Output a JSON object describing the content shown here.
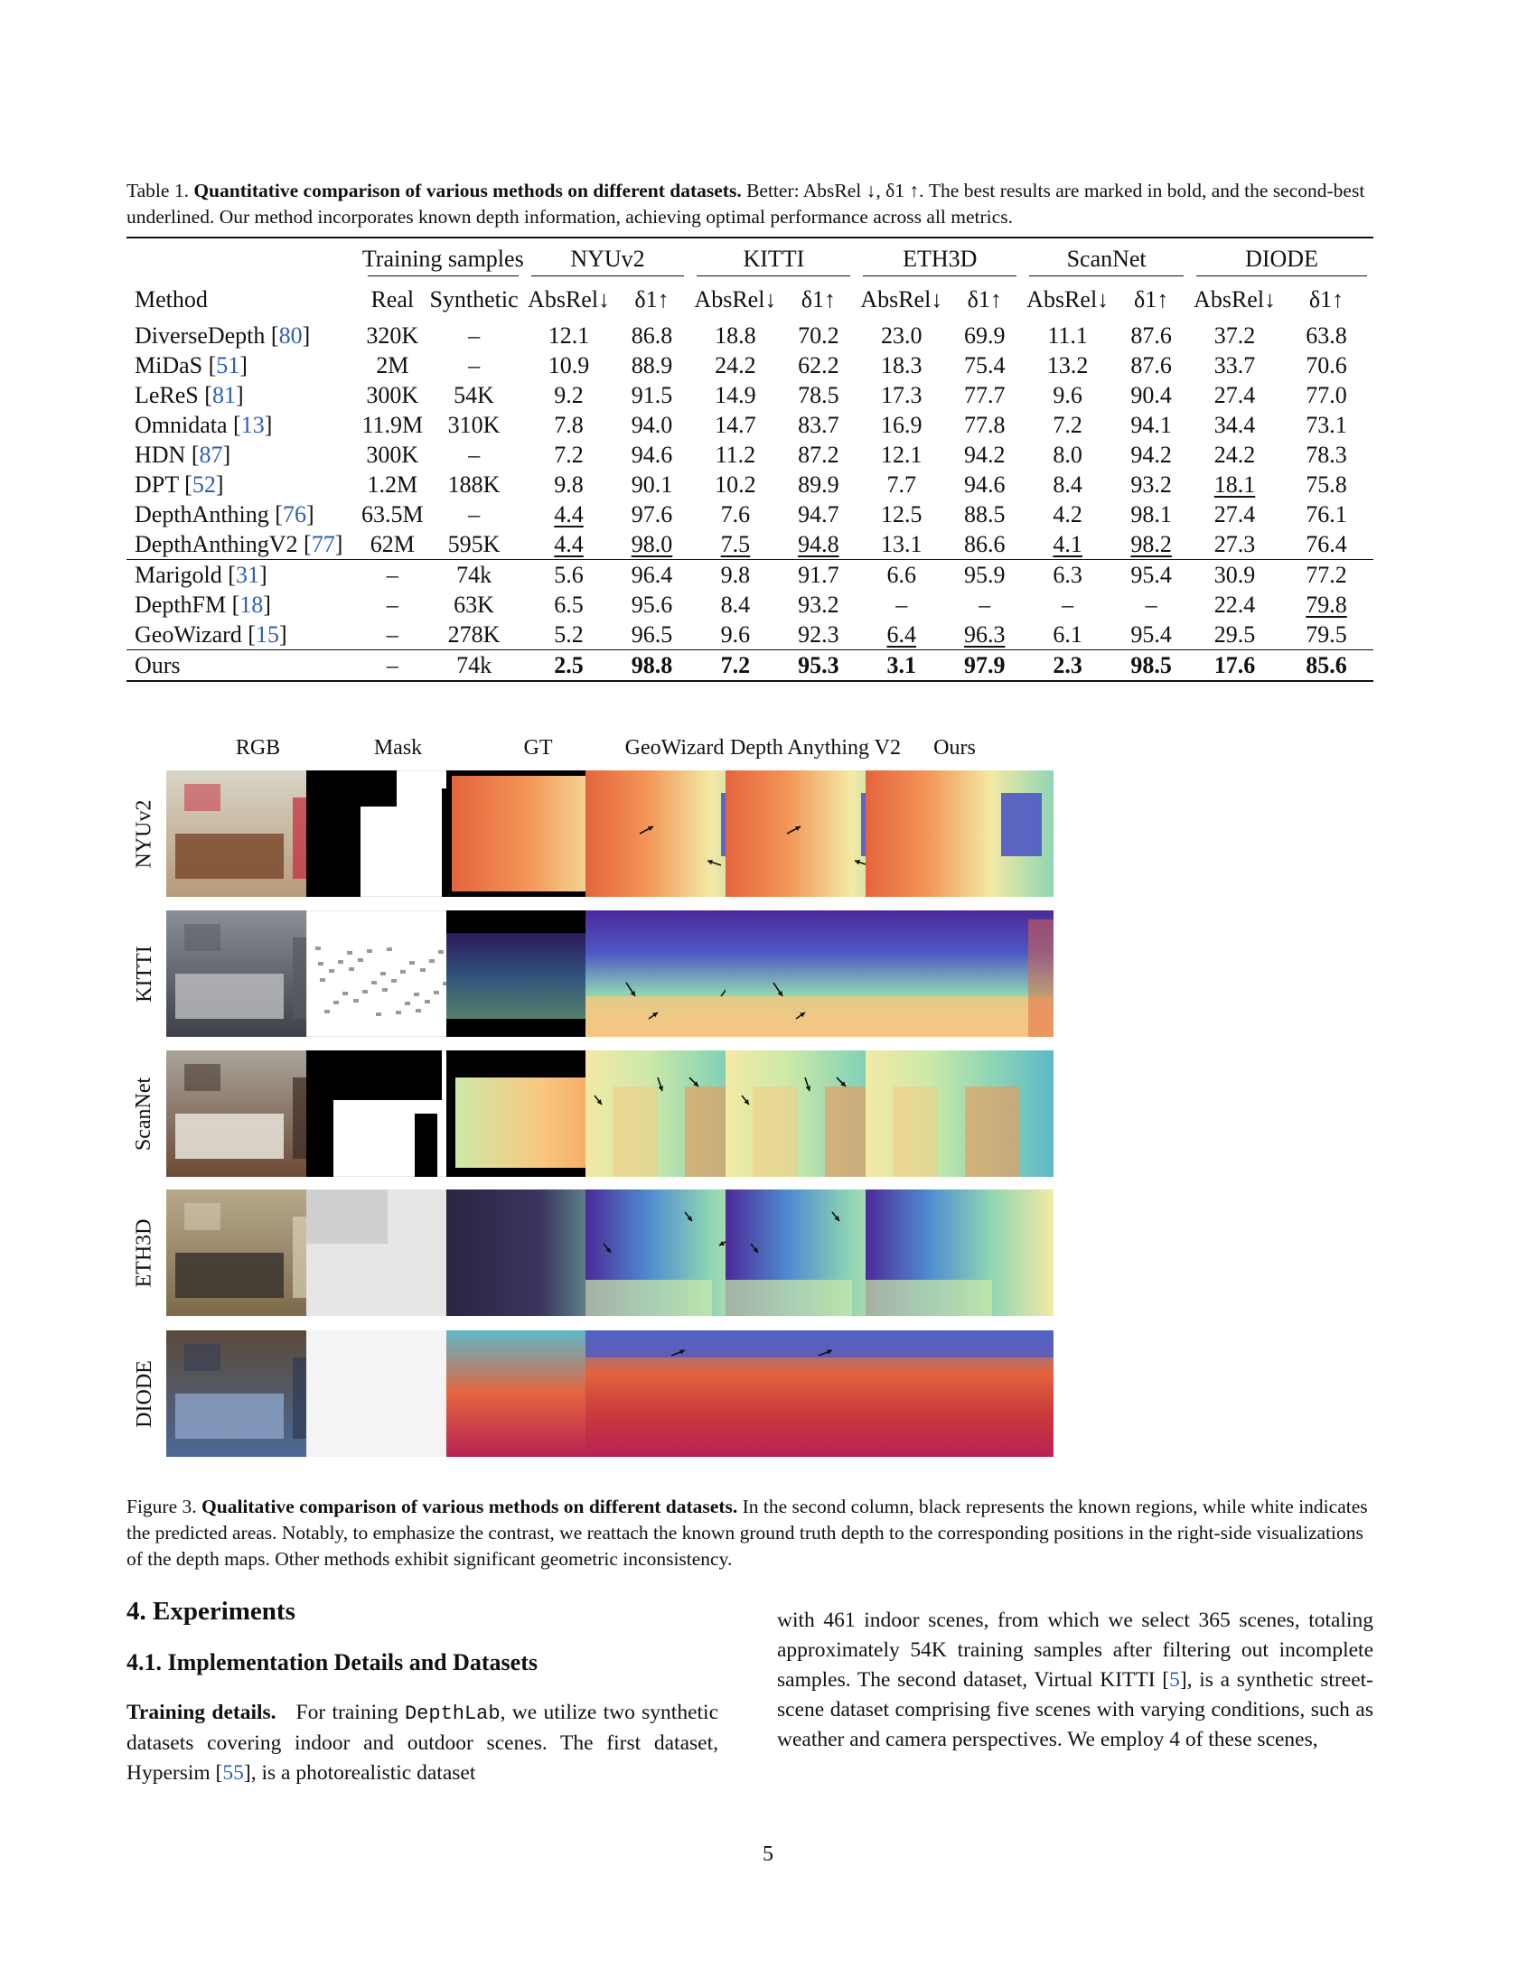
{
  "table_caption": {
    "label": "Table 1.",
    "title": "Quantitative comparison of various methods on different datasets.",
    "text": "Better: AbsRel ↓, δ1 ↑. The best results are marked in bold, and the second-best underlined. Our method incorporates known depth information, achieving optimal performance across all metrics."
  },
  "table": {
    "group_headers": [
      "Training samples",
      "NYUv2",
      "KITTI",
      "ETH3D",
      "ScanNet",
      "DIODE"
    ],
    "headers": [
      "Method",
      "Real",
      "Synthetic",
      "AbsRel↓",
      "δ1↑",
      "AbsRel↓",
      "δ1↑",
      "AbsRel↓",
      "δ1↑",
      "AbsRel↓",
      "δ1↑",
      "AbsRel↓",
      "δ1↑"
    ],
    "rows": [
      {
        "method": "DiverseDepth",
        "ref": "80",
        "cells": [
          "320K",
          "–",
          "12.1",
          "86.8",
          "18.8",
          "70.2",
          "23.0",
          "69.9",
          "11.1",
          "87.6",
          "37.2",
          "63.8"
        ]
      },
      {
        "method": "MiDaS",
        "ref": "51",
        "cells": [
          "2M",
          "–",
          "10.9",
          "88.9",
          "24.2",
          "62.2",
          "18.3",
          "75.4",
          "13.2",
          "87.6",
          "33.7",
          "70.6"
        ]
      },
      {
        "method": "LeReS",
        "ref": "81",
        "cells": [
          "300K",
          "54K",
          "9.2",
          "91.5",
          "14.9",
          "78.5",
          "17.3",
          "77.7",
          "9.6",
          "90.4",
          "27.4",
          "77.0"
        ]
      },
      {
        "method": "Omnidata",
        "ref": "13",
        "cells": [
          "11.9M",
          "310K",
          "7.8",
          "94.0",
          "14.7",
          "83.7",
          "16.9",
          "77.8",
          "7.2",
          "94.1",
          "34.4",
          "73.1"
        ]
      },
      {
        "method": "HDN",
        "ref": "87",
        "cells": [
          "300K",
          "–",
          "7.2",
          "94.6",
          "11.2",
          "87.2",
          "12.1",
          "94.2",
          "8.0",
          "94.2",
          "24.2",
          "78.3"
        ]
      },
      {
        "method": "DPT",
        "ref": "52",
        "cells": [
          "1.2M",
          "188K",
          "9.8",
          "90.1",
          "10.2",
          "89.9",
          "7.7",
          "94.6",
          "8.4",
          "93.2",
          "18.1",
          "75.8"
        ]
      },
      {
        "method": "DepthAnthing",
        "ref": "76",
        "cells": [
          "63.5M",
          "–",
          "4.4",
          "97.6",
          "7.6",
          "94.7",
          "12.5",
          "88.5",
          "4.2",
          "98.1",
          "27.4",
          "76.1"
        ]
      },
      {
        "method": "DepthAnthingV2",
        "ref": "77",
        "cells": [
          "62M",
          "595K",
          "4.4",
          "98.0",
          "7.5",
          "94.8",
          "13.1",
          "86.6",
          "4.1",
          "98.2",
          "27.3",
          "76.4"
        ]
      },
      {
        "method": "Marigold",
        "ref": "31",
        "cells": [
          "–",
          "74k",
          "5.6",
          "96.4",
          "9.8",
          "91.7",
          "6.6",
          "95.9",
          "6.3",
          "95.4",
          "30.9",
          "77.2"
        ]
      },
      {
        "method": "DepthFM",
        "ref": "18",
        "cells": [
          "–",
          "63K",
          "6.5",
          "95.6",
          "8.4",
          "93.2",
          "–",
          "–",
          "–",
          "–",
          "22.4",
          "79.8"
        ]
      },
      {
        "method": "GeoWizard",
        "ref": "15",
        "cells": [
          "–",
          "278K",
          "5.2",
          "96.5",
          "9.6",
          "92.3",
          "6.4",
          "96.3",
          "6.1",
          "95.4",
          "29.5",
          "79.5"
        ]
      },
      {
        "method": "Ours",
        "ref": "",
        "cells": [
          "–",
          "74k",
          "2.5",
          "98.8",
          "7.2",
          "95.3",
          "3.1",
          "97.9",
          "2.3",
          "98.5",
          "17.6",
          "85.6"
        ]
      }
    ]
  },
  "figure": {
    "columns": [
      "RGB",
      "Mask",
      "GT",
      "GeoWizard",
      "Depth Anything V2",
      "Ours"
    ],
    "rows": [
      "NYUv2",
      "KITTI",
      "ScanNet",
      "ETH3D",
      "DIODE"
    ]
  },
  "figure_caption": {
    "label": "Figure 3.",
    "title": "Qualitative comparison of various methods on different datasets.",
    "text": "In the second column, black represents the known regions, while white indicates the predicted areas. Notably, to emphasize the contrast, we reattach the known ground truth depth to the corresponding positions in the right-side visualizations of the depth maps. Other methods exhibit significant geometric inconsistency."
  },
  "section": {
    "title": "4. Experiments",
    "subtitle": "4.1. Implementation Details and Datasets",
    "left_lead": "Training details.",
    "left_text_1": "For training",
    "left_code": "DepthLab",
    "left_text_2": ", we utilize two synthetic datasets covering indoor and outdoor scenes. The first dataset, Hypersim [",
    "left_ref": "55",
    "left_text_3": "], is a photorealistic dataset",
    "right_text_1": "with 461 indoor scenes, from which we select 365 scenes, totaling approximately 54K training samples after filtering out incomplete samples. The second dataset, Virtual KITTI [",
    "right_ref": "5",
    "right_text_2": "], is a synthetic street-scene dataset comprising five scenes with varying conditions, such as weather and camera perspectives. We employ 4 of these scenes,"
  },
  "page_number": "5",
  "colors": {
    "link": "#2a5fb5",
    "text": "#111111"
  }
}
